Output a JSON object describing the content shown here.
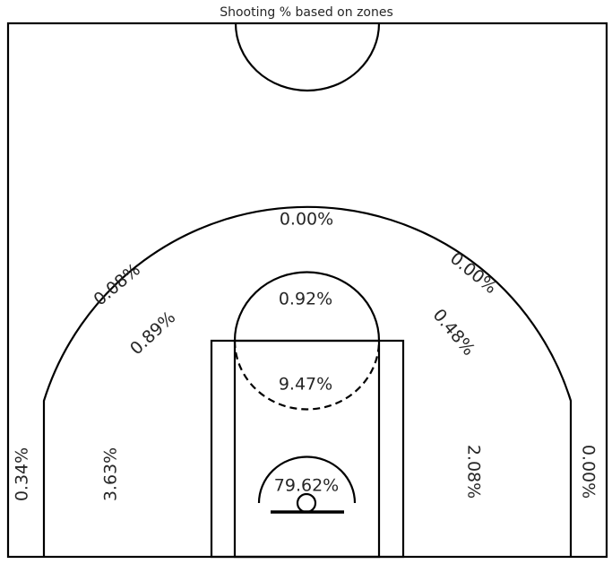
{
  "chart_data": {
    "type": "other",
    "title": "Shooting % based on zones",
    "zones": [
      {
        "zone": "restricted-area",
        "label": "79.62%"
      },
      {
        "zone": "paint-non-ra",
        "label": "9.47%"
      },
      {
        "zone": "mid-range-top-key",
        "label": "0.92%"
      },
      {
        "zone": "mid-range-left-wing",
        "label": "0.89%"
      },
      {
        "zone": "mid-range-right-wing",
        "label": "0.48%"
      },
      {
        "zone": "mid-range-left-baseline",
        "label": "3.63%"
      },
      {
        "zone": "mid-range-right-baseline",
        "label": "2.08%"
      },
      {
        "zone": "left-corner-three",
        "label": "0.34%"
      },
      {
        "zone": "right-corner-three",
        "label": "0.00%"
      },
      {
        "zone": "left-wing-three",
        "label": "0.08%"
      },
      {
        "zone": "right-wing-three",
        "label": "0.00%"
      },
      {
        "zone": "top-key-three",
        "label": "0.00%"
      }
    ]
  }
}
